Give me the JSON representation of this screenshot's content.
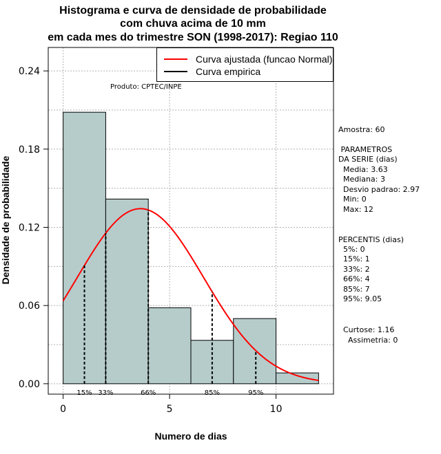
{
  "chart_data": {
    "type": "histogram",
    "title": [
      "Histograma e curva de densidade de probabilidade",
      "com chuva acima de 10 mm",
      "em cada mes do trimestre SON (1998-2017): Regiao 110"
    ],
    "xlabel": "Numero de dias",
    "ylabel": "Densidade de probabilidade",
    "xlim": [
      -0.7,
      12.7
    ],
    "ylim": [
      -0.008,
      0.258
    ],
    "x_ticks": [
      0,
      5,
      10
    ],
    "y_ticks": [
      0.0,
      0.06,
      0.12,
      0.18,
      0.24
    ],
    "y_tick_labels": [
      "0.00",
      "0.06",
      "0.12",
      "0.18",
      "0.24"
    ],
    "grid": true,
    "bins": [
      {
        "from": 0,
        "to": 2,
        "density": 0.2083
      },
      {
        "from": 2,
        "to": 4,
        "density": 0.1417
      },
      {
        "from": 4,
        "to": 6,
        "density": 0.0583
      },
      {
        "from": 6,
        "to": 8,
        "density": 0.0333
      },
      {
        "from": 8,
        "to": 10,
        "density": 0.05
      },
      {
        "from": 10,
        "to": 12,
        "density": 0.0083
      }
    ],
    "bar_color": "#b5cccb",
    "curve_color": "#ff0000",
    "normal_fit": {
      "mean": 3.63,
      "sd": 2.97,
      "x_range": [
        0,
        12
      ]
    },
    "percentile_lines": [
      {
        "label": "15%",
        "x": 1
      },
      {
        "label": "33%",
        "x": 2
      },
      {
        "label": "66%",
        "x": 4
      },
      {
        "label": "85%",
        "x": 7
      },
      {
        "label": "95%",
        "x": 9.05
      }
    ],
    "legend": [
      {
        "label": "Curva ajustada (funcao Normal)",
        "color": "#ff0000"
      },
      {
        "label": "Curva empirica",
        "color": "#000000"
      }
    ],
    "legend_position": "top-right"
  },
  "produto": "Produto: CPTEC/INPE",
  "stats": {
    "amostra": "Amostra: 60",
    "parametros_title": [
      " PARAMETROS",
      "DA SERIE (dias)"
    ],
    "parametros": [
      "  Media: 3.63",
      "  Mediana: 3",
      "  Desvio padrao: 2.97",
      "  Min: 0",
      "  Max: 12"
    ],
    "percentis_title": "PERCENTIS (dias)",
    "percentis": [
      "  5%: 0",
      "  15%: 1",
      "  33%: 2",
      "  66%: 4",
      "  85%: 7",
      "  95%: 9.05"
    ],
    "curtose": "  Curtose: 1.16",
    "assimetria": "    Assimetria: 0"
  }
}
